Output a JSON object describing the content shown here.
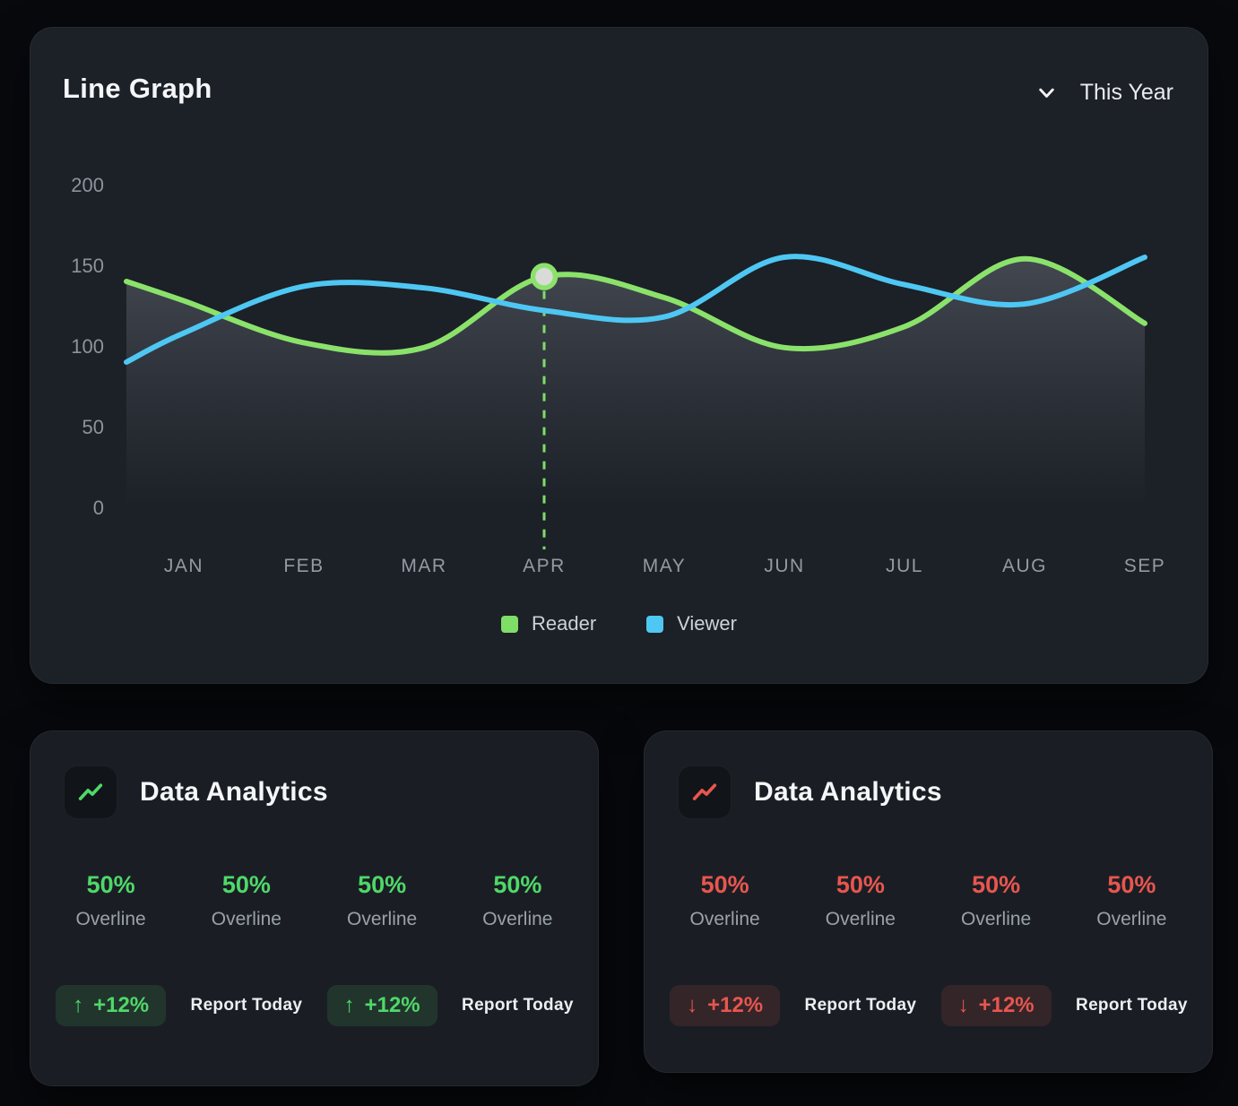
{
  "line_graph_card": {
    "title": "Line Graph",
    "period_selector": {
      "label": "This Year",
      "icon": "chevron-down"
    },
    "legend": [
      {
        "label": "Reader",
        "color": "#7ede66"
      },
      {
        "label": "Viewer",
        "color": "#4ec7f3"
      }
    ]
  },
  "chart_data": {
    "type": "line",
    "x": [
      "JAN",
      "FEB",
      "MAR",
      "APR",
      "MAY",
      "JUN",
      "JUL",
      "AUG",
      "SEP"
    ],
    "series": [
      {
        "name": "Reader",
        "color": "#8be26b",
        "edge_start_value": 140,
        "values": [
          128,
          102,
          99,
          143,
          130,
          99,
          112,
          154,
          114
        ],
        "area_fill": true
      },
      {
        "name": "Viewer",
        "color": "#4ec7f3",
        "edge_start_value": 90,
        "values": [
          108,
          137,
          136,
          122,
          118,
          155,
          138,
          126,
          155
        ]
      }
    ],
    "yticks": [
      0,
      50,
      100,
      150,
      200
    ],
    "ylim": [
      0,
      200
    ],
    "grid": false,
    "legend_position": "bottom",
    "highlight": {
      "series": "Reader",
      "x": "APR",
      "value": 143,
      "marker_fill": "#d8dbd7",
      "marker_ring": "#8be26b",
      "dash_color": "#7edd66"
    },
    "area_fill_color": "rgba(155,162,175,0.30)"
  },
  "analytics_cards": [
    {
      "title": "Data Analytics",
      "icon": "trend-up",
      "accent": "#4fd869",
      "badge_bg": "rgba(94,222,113,0.12)",
      "stats": [
        {
          "value": "50%",
          "label": "Overline"
        },
        {
          "value": "50%",
          "label": "Overline"
        },
        {
          "value": "50%",
          "label": "Overline"
        },
        {
          "value": "50%",
          "label": "Overline"
        }
      ],
      "footer_items": [
        {
          "type": "badge",
          "arrow": "↑",
          "text": "+12%"
        },
        {
          "type": "label",
          "text": "Report Today"
        },
        {
          "type": "badge",
          "arrow": "↑",
          "text": "+12%"
        },
        {
          "type": "label",
          "text": "Report Today"
        }
      ]
    },
    {
      "title": "Data Analytics",
      "icon": "trend-down",
      "accent": "#e8564f",
      "badge_bg": "rgba(232,86,79,0.13)",
      "stats": [
        {
          "value": "50%",
          "label": "Overline"
        },
        {
          "value": "50%",
          "label": "Overline"
        },
        {
          "value": "50%",
          "label": "Overline"
        },
        {
          "value": "50%",
          "label": "Overline"
        }
      ],
      "footer_items": [
        {
          "type": "badge",
          "arrow": "↓",
          "text": "+12%"
        },
        {
          "type": "label",
          "text": "Report Today"
        },
        {
          "type": "badge",
          "arrow": "↓",
          "text": "+12%"
        },
        {
          "type": "label",
          "text": "Report Today"
        }
      ]
    }
  ]
}
